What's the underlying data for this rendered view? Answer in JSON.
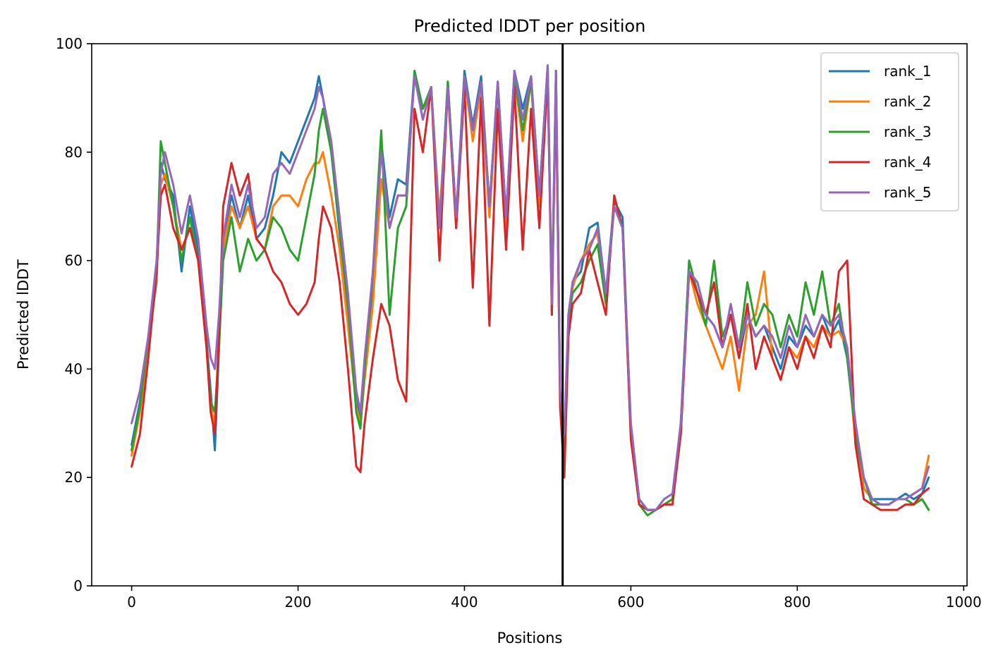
{
  "chart_data": {
    "type": "line",
    "title": "Predicted lDDT per position",
    "xlabel": "Positions",
    "ylabel": "Predicted lDDT",
    "xlim": [
      -48,
      1004
    ],
    "ylim": [
      0,
      100
    ],
    "xticks": [
      0,
      200,
      400,
      600,
      800,
      1000
    ],
    "yticks": [
      0,
      20,
      40,
      60,
      80,
      100
    ],
    "grid": false,
    "legend_position": "top-right",
    "chain_break": {
      "x": 518,
      "color": "#000000"
    },
    "series": [
      {
        "name": "rank_1",
        "color": "#1f77b4",
        "x": [
          0,
          10,
          20,
          30,
          35,
          40,
          50,
          60,
          70,
          80,
          90,
          95,
          100,
          105,
          110,
          120,
          130,
          140,
          150,
          160,
          170,
          180,
          190,
          200,
          210,
          220,
          225,
          230,
          240,
          250,
          260,
          270,
          275,
          280,
          290,
          300,
          310,
          320,
          330,
          340,
          350,
          360,
          370,
          380,
          390,
          400,
          410,
          420,
          430,
          440,
          450,
          460,
          470,
          480,
          490,
          500,
          505,
          510,
          515,
          520,
          525,
          530,
          540,
          550,
          560,
          570,
          580,
          590,
          600,
          610,
          620,
          630,
          640,
          650,
          660,
          670,
          680,
          690,
          700,
          710,
          720,
          730,
          740,
          750,
          760,
          770,
          780,
          790,
          800,
          810,
          820,
          830,
          840,
          850,
          860,
          870,
          880,
          890,
          900,
          910,
          920,
          930,
          940,
          950,
          958
        ],
        "y": [
          26,
          34,
          45,
          56,
          78,
          75,
          72,
          58,
          70,
          62,
          45,
          36,
          25,
          44,
          64,
          72,
          66,
          72,
          64,
          66,
          72,
          80,
          78,
          82,
          86,
          90,
          94,
          90,
          80,
          65,
          50,
          34,
          31,
          40,
          56,
          82,
          68,
          75,
          74,
          95,
          88,
          92,
          66,
          93,
          68,
          95,
          85,
          94,
          70,
          93,
          68,
          95,
          88,
          94,
          72,
          96,
          50,
          95,
          35,
          22,
          50,
          56,
          58,
          66,
          67,
          54,
          71,
          68,
          29,
          16,
          14,
          14,
          15,
          16,
          30,
          60,
          54,
          50,
          48,
          44,
          50,
          42,
          50,
          46,
          48,
          44,
          40,
          46,
          44,
          48,
          46,
          50,
          46,
          49,
          42,
          28,
          18,
          16,
          16,
          16,
          16,
          17,
          16,
          17,
          20
        ]
      },
      {
        "name": "rank_2",
        "color": "#ff7f0e",
        "x": [
          0,
          10,
          20,
          30,
          35,
          40,
          50,
          60,
          70,
          80,
          90,
          95,
          100,
          105,
          110,
          120,
          130,
          140,
          150,
          160,
          170,
          180,
          190,
          200,
          210,
          220,
          225,
          230,
          240,
          250,
          260,
          270,
          275,
          280,
          290,
          300,
          310,
          320,
          330,
          340,
          350,
          360,
          370,
          380,
          390,
          400,
          410,
          420,
          430,
          440,
          450,
          460,
          470,
          480,
          490,
          500,
          505,
          510,
          515,
          520,
          525,
          530,
          540,
          550,
          560,
          570,
          580,
          590,
          600,
          610,
          620,
          630,
          640,
          650,
          660,
          670,
          680,
          690,
          700,
          710,
          720,
          730,
          740,
          750,
          760,
          770,
          780,
          790,
          800,
          810,
          820,
          830,
          840,
          850,
          860,
          870,
          880,
          890,
          900,
          910,
          920,
          930,
          940,
          950,
          958
        ],
        "y": [
          24,
          32,
          44,
          57,
          74,
          76,
          70,
          62,
          66,
          60,
          44,
          33,
          30,
          46,
          62,
          70,
          66,
          70,
          64,
          62,
          70,
          72,
          72,
          70,
          75,
          78,
          78,
          80,
          72,
          62,
          48,
          33,
          30,
          38,
          52,
          75,
          66,
          72,
          72,
          94,
          86,
          92,
          68,
          92,
          66,
          94,
          82,
          92,
          68,
          92,
          66,
          94,
          82,
          93,
          70,
          95,
          52,
          94,
          34,
          21,
          48,
          55,
          60,
          63,
          65,
          52,
          70,
          66,
          28,
          15,
          14,
          14,
          15,
          16,
          28,
          58,
          52,
          48,
          44,
          40,
          46,
          36,
          48,
          50,
          58,
          42,
          38,
          44,
          42,
          46,
          44,
          48,
          46,
          47,
          44,
          26,
          18,
          16,
          15,
          15,
          16,
          16,
          17,
          18,
          24
        ]
      },
      {
        "name": "rank_3",
        "color": "#2ca02c",
        "x": [
          0,
          10,
          20,
          30,
          35,
          40,
          50,
          60,
          70,
          80,
          90,
          95,
          100,
          105,
          110,
          120,
          130,
          140,
          150,
          160,
          170,
          180,
          190,
          200,
          210,
          220,
          225,
          230,
          240,
          250,
          260,
          270,
          275,
          280,
          290,
          300,
          310,
          320,
          330,
          340,
          350,
          360,
          370,
          380,
          390,
          400,
          410,
          420,
          430,
          440,
          450,
          460,
          470,
          480,
          490,
          500,
          505,
          510,
          515,
          520,
          525,
          530,
          540,
          550,
          560,
          570,
          580,
          590,
          600,
          610,
          620,
          630,
          640,
          650,
          660,
          670,
          680,
          690,
          700,
          710,
          720,
          730,
          740,
          750,
          760,
          770,
          780,
          790,
          800,
          810,
          820,
          830,
          840,
          850,
          860,
          870,
          880,
          890,
          900,
          910,
          920,
          930,
          940,
          950,
          958
        ],
        "y": [
          25,
          33,
          46,
          58,
          82,
          78,
          70,
          60,
          68,
          60,
          44,
          34,
          32,
          44,
          60,
          68,
          58,
          64,
          60,
          62,
          68,
          66,
          62,
          60,
          68,
          76,
          84,
          88,
          80,
          66,
          52,
          32,
          29,
          40,
          58,
          84,
          50,
          66,
          70,
          95,
          88,
          92,
          66,
          93,
          68,
          94,
          84,
          93,
          70,
          92,
          68,
          94,
          84,
          93,
          72,
          96,
          52,
          95,
          36,
          22,
          49,
          54,
          56,
          60,
          63,
          52,
          70,
          66,
          28,
          15,
          13,
          14,
          15,
          16,
          30,
          60,
          54,
          48,
          60,
          46,
          50,
          44,
          56,
          48,
          52,
          50,
          44,
          50,
          46,
          56,
          50,
          58,
          48,
          52,
          42,
          28,
          20,
          15,
          15,
          15,
          16,
          16,
          15,
          16,
          14
        ]
      },
      {
        "name": "rank_4",
        "color": "#d62728",
        "x": [
          0,
          10,
          20,
          30,
          35,
          40,
          50,
          60,
          70,
          80,
          90,
          95,
          100,
          105,
          110,
          120,
          130,
          140,
          150,
          160,
          170,
          180,
          190,
          200,
          210,
          220,
          225,
          230,
          240,
          250,
          260,
          270,
          275,
          280,
          290,
          300,
          310,
          320,
          330,
          340,
          350,
          360,
          370,
          380,
          390,
          400,
          410,
          420,
          430,
          440,
          450,
          460,
          470,
          480,
          490,
          500,
          505,
          510,
          515,
          520,
          525,
          530,
          540,
          550,
          560,
          570,
          580,
          590,
          600,
          610,
          620,
          630,
          640,
          650,
          660,
          670,
          680,
          690,
          700,
          710,
          720,
          730,
          740,
          750,
          760,
          770,
          780,
          790,
          800,
          810,
          820,
          830,
          840,
          850,
          860,
          870,
          880,
          890,
          900,
          910,
          920,
          930,
          940,
          950,
          958
        ],
        "y": [
          22,
          28,
          42,
          58,
          72,
          74,
          66,
          62,
          66,
          60,
          44,
          32,
          28,
          46,
          70,
          78,
          72,
          76,
          64,
          62,
          58,
          56,
          52,
          50,
          52,
          56,
          64,
          70,
          66,
          56,
          40,
          22,
          21,
          30,
          42,
          52,
          48,
          38,
          34,
          88,
          80,
          92,
          60,
          92,
          66,
          92,
          55,
          90,
          48,
          88,
          62,
          92,
          62,
          88,
          66,
          94,
          50,
          92,
          33,
          20,
          46,
          52,
          54,
          62,
          56,
          50,
          72,
          66,
          27,
          15,
          14,
          14,
          15,
          15,
          28,
          58,
          54,
          50,
          56,
          44,
          50,
          42,
          52,
          40,
          46,
          42,
          38,
          44,
          40,
          46,
          42,
          48,
          44,
          58,
          60,
          26,
          16,
          15,
          14,
          14,
          14,
          15,
          15,
          17,
          18
        ]
      },
      {
        "name": "rank_5",
        "color": "#9467bd",
        "x": [
          0,
          10,
          20,
          30,
          35,
          40,
          50,
          60,
          70,
          80,
          90,
          95,
          100,
          105,
          110,
          120,
          130,
          140,
          150,
          160,
          170,
          180,
          190,
          200,
          210,
          220,
          225,
          230,
          240,
          250,
          260,
          270,
          275,
          280,
          290,
          300,
          310,
          320,
          330,
          340,
          350,
          360,
          370,
          380,
          390,
          400,
          410,
          420,
          430,
          440,
          450,
          460,
          470,
          480,
          490,
          500,
          505,
          510,
          515,
          520,
          525,
          530,
          540,
          550,
          560,
          570,
          580,
          590,
          600,
          610,
          620,
          630,
          640,
          650,
          660,
          670,
          680,
          690,
          700,
          710,
          720,
          730,
          740,
          750,
          760,
          770,
          780,
          790,
          800,
          810,
          820,
          830,
          840,
          850,
          860,
          870,
          880,
          890,
          900,
          910,
          920,
          930,
          940,
          950,
          958
        ],
        "y": [
          30,
          36,
          46,
          60,
          76,
          80,
          74,
          65,
          72,
          64,
          48,
          42,
          40,
          50,
          64,
          74,
          68,
          74,
          66,
          68,
          76,
          78,
          76,
          80,
          84,
          88,
          92,
          90,
          82,
          68,
          54,
          36,
          32,
          42,
          58,
          80,
          66,
          72,
          72,
          94,
          86,
          92,
          66,
          92,
          68,
          94,
          84,
          93,
          70,
          93,
          68,
          95,
          86,
          94,
          72,
          96,
          52,
          95,
          36,
          28,
          50,
          56,
          60,
          62,
          66,
          54,
          70,
          66,
          30,
          16,
          14,
          14,
          16,
          17,
          30,
          58,
          56,
          50,
          48,
          44,
          52,
          44,
          50,
          46,
          48,
          46,
          42,
          48,
          44,
          50,
          46,
          50,
          48,
          50,
          44,
          30,
          20,
          16,
          15,
          15,
          16,
          16,
          17,
          18,
          22
        ]
      }
    ]
  }
}
